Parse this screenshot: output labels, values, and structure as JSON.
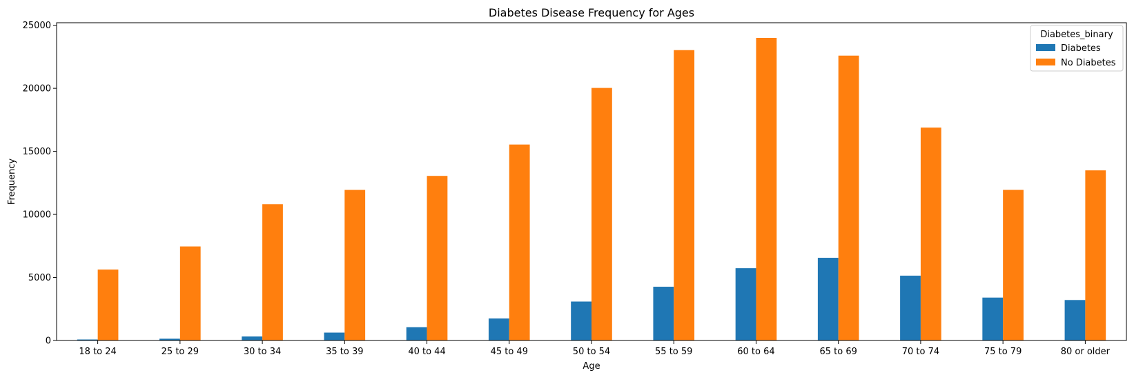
{
  "chart_data": {
    "type": "bar",
    "title": "Diabetes Disease Frequency for Ages",
    "xlabel": "Age",
    "ylabel": "Frequency",
    "ylim": [
      0,
      25200
    ],
    "yticks": [
      0,
      5000,
      10000,
      15000,
      20000,
      25000
    ],
    "categories": [
      "18 to 24",
      "25 to 29",
      "30 to 34",
      "35 to 39",
      "40 to 44",
      "45 to 49",
      "50 to 54",
      "55 to 59",
      "60 to 64",
      "65 to 69",
      "70 to 74",
      "75 to 79",
      "80 or older"
    ],
    "legend": {
      "title": "Diabetes_binary",
      "position": "top-right"
    },
    "series": [
      {
        "name": "Diabetes",
        "color": "#1f77b4",
        "values": [
          80,
          140,
          314,
          626,
          1051,
          1742,
          3088,
          4263,
          5733,
          6558,
          5141,
          3403,
          3209
        ]
      },
      {
        "name": "No Diabetes",
        "color": "#ff7f0e",
        "values": [
          5622,
          7458,
          10809,
          11941,
          13054,
          15542,
          20030,
          23029,
          23999,
          22592,
          16884,
          11943,
          13492
        ]
      }
    ]
  }
}
